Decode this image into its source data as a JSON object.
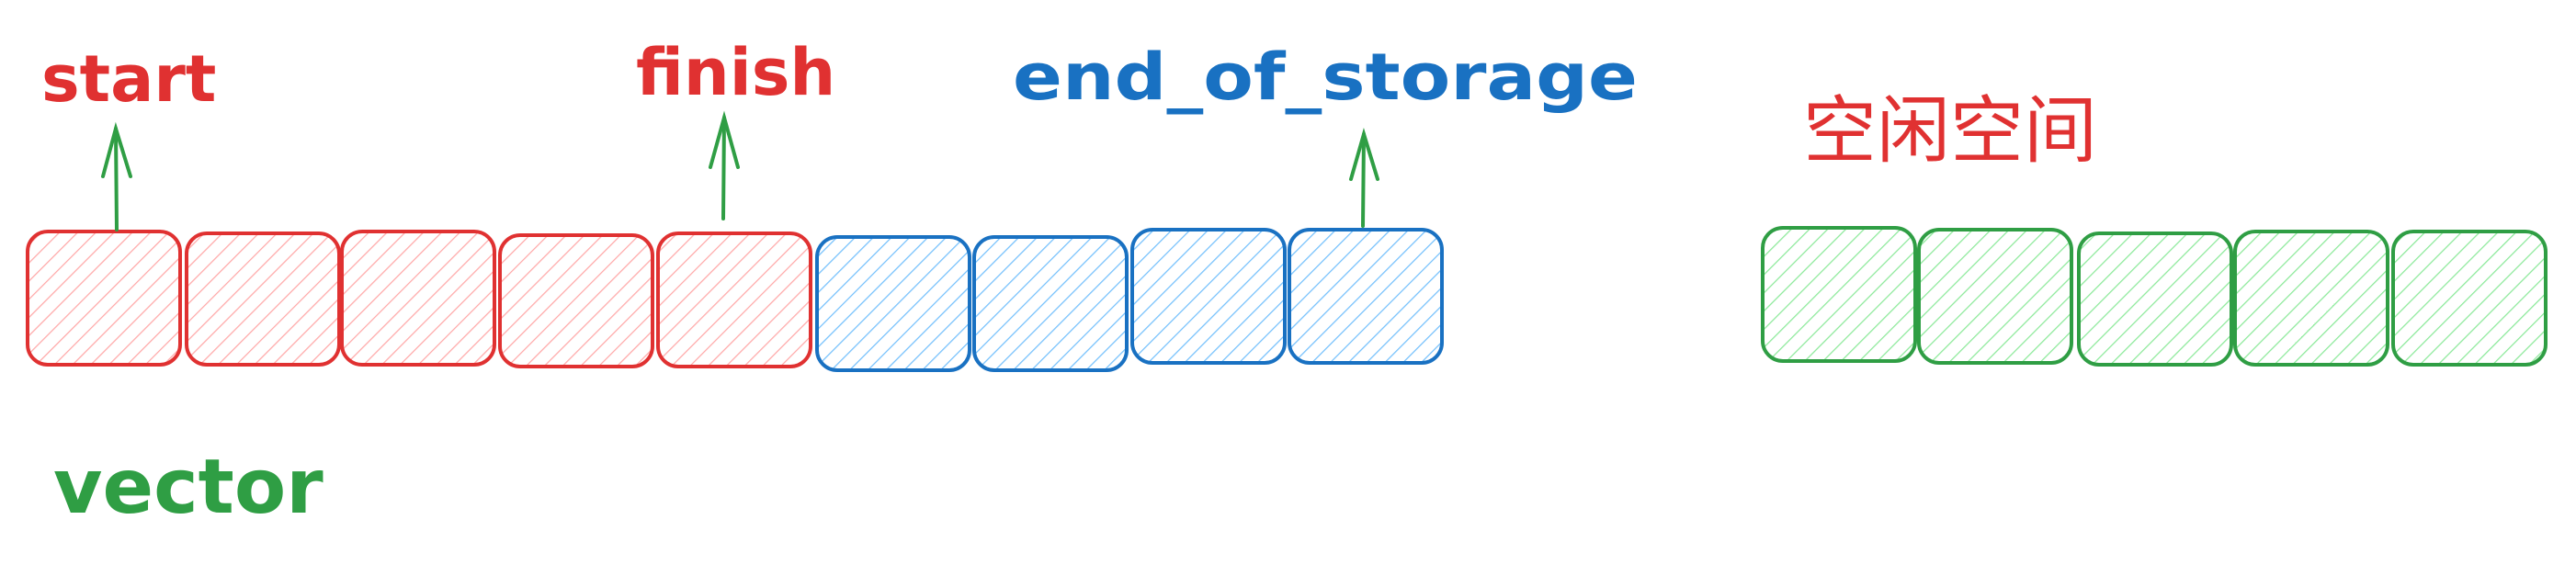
{
  "labels": {
    "start": "start",
    "finish": "finish",
    "end_of_storage": "end_of_storage",
    "free_space": "空闲空间",
    "vector": "vector"
  },
  "colors": {
    "used": "#e03131",
    "used_fill": "#ffc9c9",
    "reserved": "#1971c2",
    "reserved_fill": "#a5d8ff",
    "free": "#2f9e44",
    "free_fill": "#b2f2bb",
    "arrow": "#2f9e44"
  },
  "vector_cells": {
    "used_count": 5,
    "reserved_count": 4
  },
  "free_cells": {
    "count": 5
  }
}
